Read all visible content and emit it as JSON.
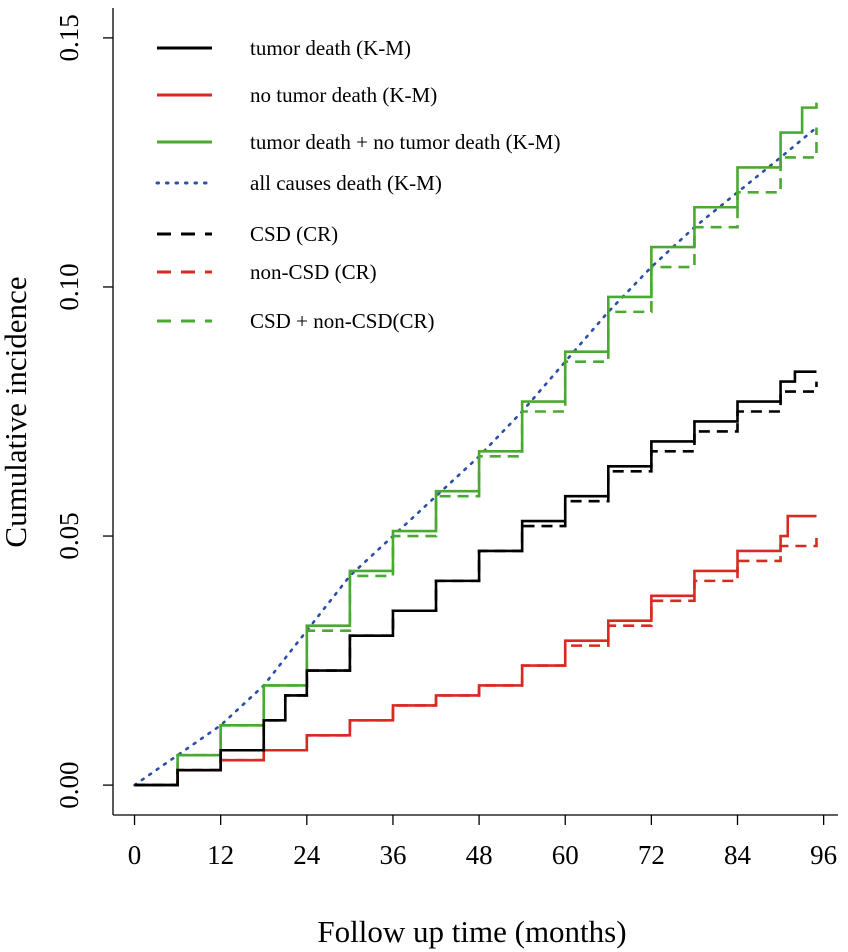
{
  "chart_data": {
    "type": "line",
    "title": "",
    "xlabel": "Follow up time (months)",
    "ylabel": "Cumulative incidence",
    "xlim": [
      -3,
      98
    ],
    "ylim": [
      -0.006,
      0.156
    ],
    "xticks": [
      0,
      12,
      24,
      36,
      48,
      60,
      72,
      84,
      96
    ],
    "xtick_labels": [
      "0",
      "12",
      "24",
      "36",
      "48",
      "60",
      "72",
      "84",
      "96"
    ],
    "yticks": [
      0,
      0.05,
      0.1,
      0.15
    ],
    "ytick_labels": [
      "0.00",
      "0.05",
      "0.10",
      "0.15"
    ],
    "grid": false,
    "legend_position": "top-left",
    "series": [
      {
        "name": "tumor death (K-M)",
        "color": "#000000",
        "dash": "solid",
        "step": true,
        "x": [
          0,
          6,
          12,
          18,
          21,
          24,
          30,
          36,
          42,
          48,
          54,
          60,
          66,
          72,
          78,
          84,
          90,
          92,
          95
        ],
        "y": [
          0,
          0.003,
          0.007,
          0.013,
          0.018,
          0.023,
          0.03,
          0.035,
          0.041,
          0.047,
          0.053,
          0.058,
          0.064,
          0.069,
          0.073,
          0.077,
          0.081,
          0.083,
          0.083
        ]
      },
      {
        "name": "no tumor death (K-M)",
        "color": "#d62a22",
        "dash": "solid",
        "step": true,
        "x": [
          0,
          6,
          12,
          18,
          24,
          30,
          36,
          42,
          48,
          54,
          60,
          66,
          72,
          78,
          84,
          90,
          91,
          95
        ],
        "y": [
          0,
          0.003,
          0.005,
          0.007,
          0.01,
          0.013,
          0.016,
          0.018,
          0.02,
          0.024,
          0.029,
          0.033,
          0.038,
          0.043,
          0.047,
          0.05,
          0.054,
          0.054
        ]
      },
      {
        "name": "tumor death + no tumor death (K-M)",
        "color": "#4aa931",
        "dash": "solid",
        "step": true,
        "x": [
          0,
          6,
          12,
          18,
          24,
          30,
          36,
          42,
          48,
          54,
          60,
          66,
          72,
          78,
          84,
          90,
          93,
          95
        ],
        "y": [
          0,
          0.006,
          0.012,
          0.02,
          0.032,
          0.043,
          0.051,
          0.059,
          0.067,
          0.077,
          0.087,
          0.098,
          0.108,
          0.116,
          0.124,
          0.131,
          0.136,
          0.137
        ]
      },
      {
        "name": "all causes death (K-M)",
        "color": "#2b4fa8",
        "dash": "dotted",
        "step": false,
        "x": [
          0,
          6,
          12,
          18,
          24,
          30,
          36,
          42,
          48,
          54,
          60,
          66,
          72,
          78,
          84,
          90,
          95
        ],
        "y": [
          0,
          0.006,
          0.012,
          0.02,
          0.031,
          0.042,
          0.05,
          0.058,
          0.066,
          0.075,
          0.085,
          0.095,
          0.104,
          0.112,
          0.119,
          0.126,
          0.132
        ]
      },
      {
        "name": "CSD (CR)",
        "color": "#000000",
        "dash": "dashed",
        "step": true,
        "x": [
          0,
          6,
          12,
          18,
          21,
          24,
          30,
          36,
          42,
          48,
          54,
          60,
          66,
          72,
          78,
          84,
          90,
          95
        ],
        "y": [
          0,
          0.003,
          0.007,
          0.013,
          0.018,
          0.023,
          0.03,
          0.035,
          0.041,
          0.047,
          0.052,
          0.057,
          0.063,
          0.067,
          0.071,
          0.075,
          0.079,
          0.081
        ]
      },
      {
        "name": "non-CSD (CR)",
        "color": "#d62a22",
        "dash": "dashed",
        "step": true,
        "x": [
          0,
          6,
          12,
          18,
          24,
          30,
          36,
          42,
          48,
          54,
          60,
          66,
          72,
          78,
          84,
          90,
          95
        ],
        "y": [
          0,
          0.003,
          0.005,
          0.007,
          0.01,
          0.013,
          0.016,
          0.018,
          0.02,
          0.024,
          0.028,
          0.032,
          0.037,
          0.041,
          0.045,
          0.048,
          0.051
        ]
      },
      {
        "name": "CSD + non-CSD(CR)",
        "color": "#4aa931",
        "dash": "dashed",
        "step": true,
        "x": [
          0,
          6,
          12,
          18,
          24,
          30,
          36,
          42,
          48,
          54,
          60,
          66,
          72,
          78,
          84,
          90,
          95
        ],
        "y": [
          0,
          0.006,
          0.012,
          0.02,
          0.031,
          0.042,
          0.05,
          0.058,
          0.066,
          0.075,
          0.085,
          0.095,
          0.104,
          0.112,
          0.119,
          0.126,
          0.132
        ]
      }
    ]
  }
}
